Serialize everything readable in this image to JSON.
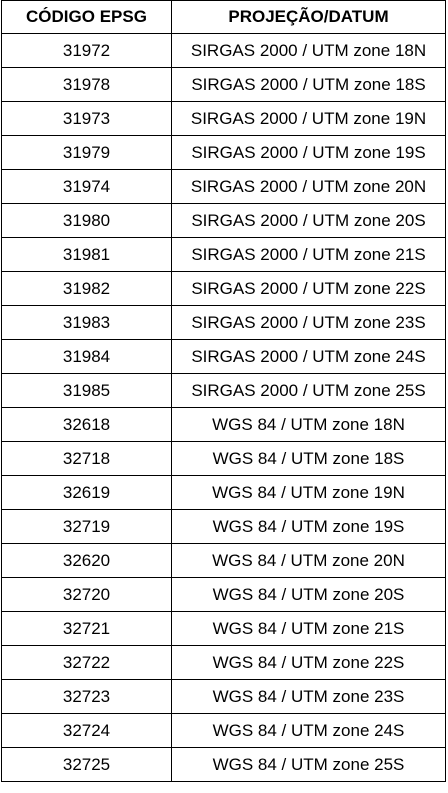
{
  "table": {
    "headers": {
      "code": "CÓDIGO EPSG",
      "projection": "PROJEÇÃO/DATUM"
    },
    "rows": [
      {
        "code": "31972",
        "projection": "SIRGAS 2000 / UTM zone 18N"
      },
      {
        "code": "31978",
        "projection": "SIRGAS 2000 / UTM zone 18S"
      },
      {
        "code": "31973",
        "projection": "SIRGAS 2000 / UTM zone 19N"
      },
      {
        "code": "31979",
        "projection": "SIRGAS 2000 / UTM zone 19S"
      },
      {
        "code": "31974",
        "projection": "SIRGAS 2000 / UTM zone 20N"
      },
      {
        "code": "31980",
        "projection": "SIRGAS 2000 / UTM zone 20S"
      },
      {
        "code": "31981",
        "projection": "SIRGAS 2000 / UTM zone 21S"
      },
      {
        "code": "31982",
        "projection": "SIRGAS 2000 / UTM zone 22S"
      },
      {
        "code": "31983",
        "projection": "SIRGAS 2000 / UTM zone 23S"
      },
      {
        "code": "31984",
        "projection": "SIRGAS 2000 / UTM zone 24S"
      },
      {
        "code": "31985",
        "projection": "SIRGAS 2000 / UTM zone 25S"
      },
      {
        "code": "32618",
        "projection": "WGS 84 / UTM zone 18N"
      },
      {
        "code": "32718",
        "projection": "WGS 84 / UTM zone 18S"
      },
      {
        "code": "32619",
        "projection": "WGS 84 / UTM zone 19N"
      },
      {
        "code": "32719",
        "projection": "WGS 84 / UTM zone 19S"
      },
      {
        "code": "32620",
        "projection": "WGS 84 / UTM zone 20N"
      },
      {
        "code": "32720",
        "projection": "WGS 84 / UTM zone 20S"
      },
      {
        "code": "32721",
        "projection": "WGS 84 / UTM zone 21S"
      },
      {
        "code": "32722",
        "projection": "WGS 84 / UTM zone 22S"
      },
      {
        "code": "32723",
        "projection": "WGS 84 / UTM zone 23S"
      },
      {
        "code": "32724",
        "projection": "WGS 84 / UTM zone 24S"
      },
      {
        "code": "32725",
        "projection": "WGS 84 / UTM zone 25S"
      }
    ]
  }
}
